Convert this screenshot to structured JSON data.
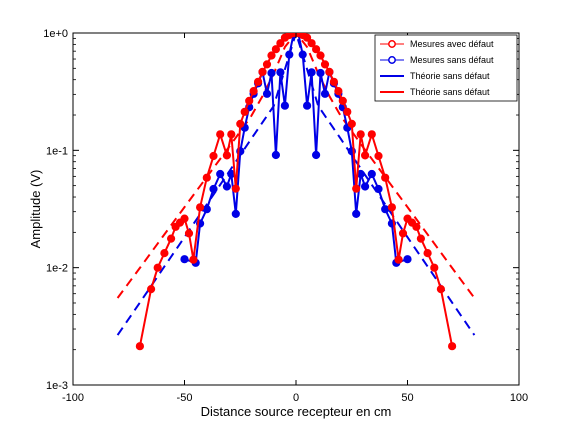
{
  "chart_data": {
    "type": "line",
    "xlabel": "Distance source recepteur en cm",
    "ylabel": "Amplitude (V)",
    "xlim": [
      -100,
      100
    ],
    "ylim": [
      0.001,
      1
    ],
    "yscale": "log",
    "grid": false,
    "legend_position": "top-right",
    "x_ticks": [
      -100,
      -50,
      0,
      50,
      100
    ],
    "x_tick_labels": [
      "-100",
      "-50",
      "0",
      "50",
      "100"
    ],
    "y_ticks": [
      0.001,
      0.01,
      0.1,
      1
    ],
    "y_tick_labels": [
      "1e-3",
      "1e-2",
      "1e-1",
      "1e+0"
    ],
    "series": [
      {
        "name": "Mesures avec défaut",
        "color": "#ff0000",
        "style": "solid-markers",
        "x": [
          -70,
          -65,
          -62,
          -59,
          -56,
          -54,
          -52,
          -50,
          -48,
          -46,
          -43,
          -40,
          -37,
          -34,
          -31,
          -29,
          -27,
          -25,
          -23,
          -21,
          -19,
          -17,
          -15,
          -13,
          -11,
          -9,
          -7,
          -5,
          -3,
          -1,
          1,
          3,
          5,
          7,
          9,
          11,
          13,
          15,
          17,
          19,
          21,
          23,
          25,
          27,
          29,
          31,
          34,
          37,
          40,
          43,
          46,
          48,
          50,
          52,
          54,
          56,
          59,
          62,
          65,
          70
        ],
        "y": [
          0.00214,
          0.00657,
          0.01,
          0.0133,
          0.0177,
          0.0223,
          0.0242,
          0.0262,
          0.0196,
          0.0117,
          0.0327,
          0.0585,
          0.0895,
          0.137,
          0.0906,
          0.137,
          0.0472,
          0.168,
          0.213,
          0.264,
          0.32,
          0.384,
          0.466,
          0.54,
          0.643,
          0.728,
          0.819,
          0.911,
          0.961,
          1.0,
          1.0,
          0.961,
          0.911,
          0.819,
          0.728,
          0.643,
          0.54,
          0.466,
          0.384,
          0.32,
          0.264,
          0.213,
          0.168,
          0.0472,
          0.137,
          0.0906,
          0.137,
          0.0895,
          0.0585,
          0.0327,
          0.0117,
          0.0196,
          0.0262,
          0.0242,
          0.0223,
          0.0177,
          0.0133,
          0.01,
          0.00657,
          0.00214
        ]
      },
      {
        "name": "Mesures sans défaut",
        "color": "#0000e6",
        "style": "solid-markers",
        "x": [
          -50,
          -45,
          -43,
          -40,
          -37,
          -34,
          -31,
          -29,
          -27,
          -25,
          -23,
          -21,
          -19,
          -17,
          -15,
          -13,
          -11,
          -9,
          -7,
          -5,
          -3,
          -1,
          1,
          3,
          5,
          7,
          9,
          11,
          13,
          15,
          17,
          19,
          21,
          23,
          25,
          27,
          29,
          31,
          34,
          37,
          40,
          43,
          45,
          50
        ],
        "y": [
          0.0118,
          0.011,
          0.0238,
          0.0315,
          0.0468,
          0.0629,
          0.0492,
          0.0629,
          0.0287,
          0.0983,
          0.156,
          0.233,
          0.303,
          0.373,
          0.464,
          0.303,
          0.456,
          0.0913,
          0.462,
          0.24,
          0.654,
          0.998,
          0.998,
          0.654,
          0.24,
          0.462,
          0.0913,
          0.456,
          0.303,
          0.464,
          0.373,
          0.303,
          0.233,
          0.156,
          0.0983,
          0.0287,
          0.0629,
          0.0492,
          0.0629,
          0.0468,
          0.0315,
          0.0238,
          0.011,
          0.0118
        ]
      },
      {
        "name": "Théorie sans défaut",
        "color": "#0000e6",
        "style": "dashed",
        "x": [
          -80,
          -70,
          -60,
          -50,
          -40,
          -30,
          -20,
          -10,
          0,
          10,
          20,
          30,
          40,
          50,
          60,
          70,
          80
        ],
        "y": [
          0.00266,
          0.00504,
          0.0096,
          0.0182,
          0.0346,
          0.0658,
          0.126,
          0.238,
          1.0,
          0.238,
          0.126,
          0.0658,
          0.0346,
          0.0182,
          0.0096,
          0.00504,
          0.00266
        ]
      },
      {
        "name": "Théorie sans défaut",
        "color": "#ff0000",
        "style": "dashed",
        "x": [
          -80,
          -70,
          -60,
          -50,
          -40,
          -30,
          -25,
          -20,
          -15,
          -10,
          -5,
          0,
          5,
          10,
          15,
          20,
          25,
          30,
          40,
          50,
          60,
          70,
          80
        ],
        "y": [
          0.00551,
          0.00996,
          0.0181,
          0.0328,
          0.0593,
          0.107,
          0.145,
          0.197,
          0.29,
          0.45,
          0.76,
          1.0,
          0.76,
          0.45,
          0.29,
          0.197,
          0.145,
          0.107,
          0.0593,
          0.0328,
          0.0181,
          0.00996,
          0.00551
        ]
      }
    ]
  }
}
